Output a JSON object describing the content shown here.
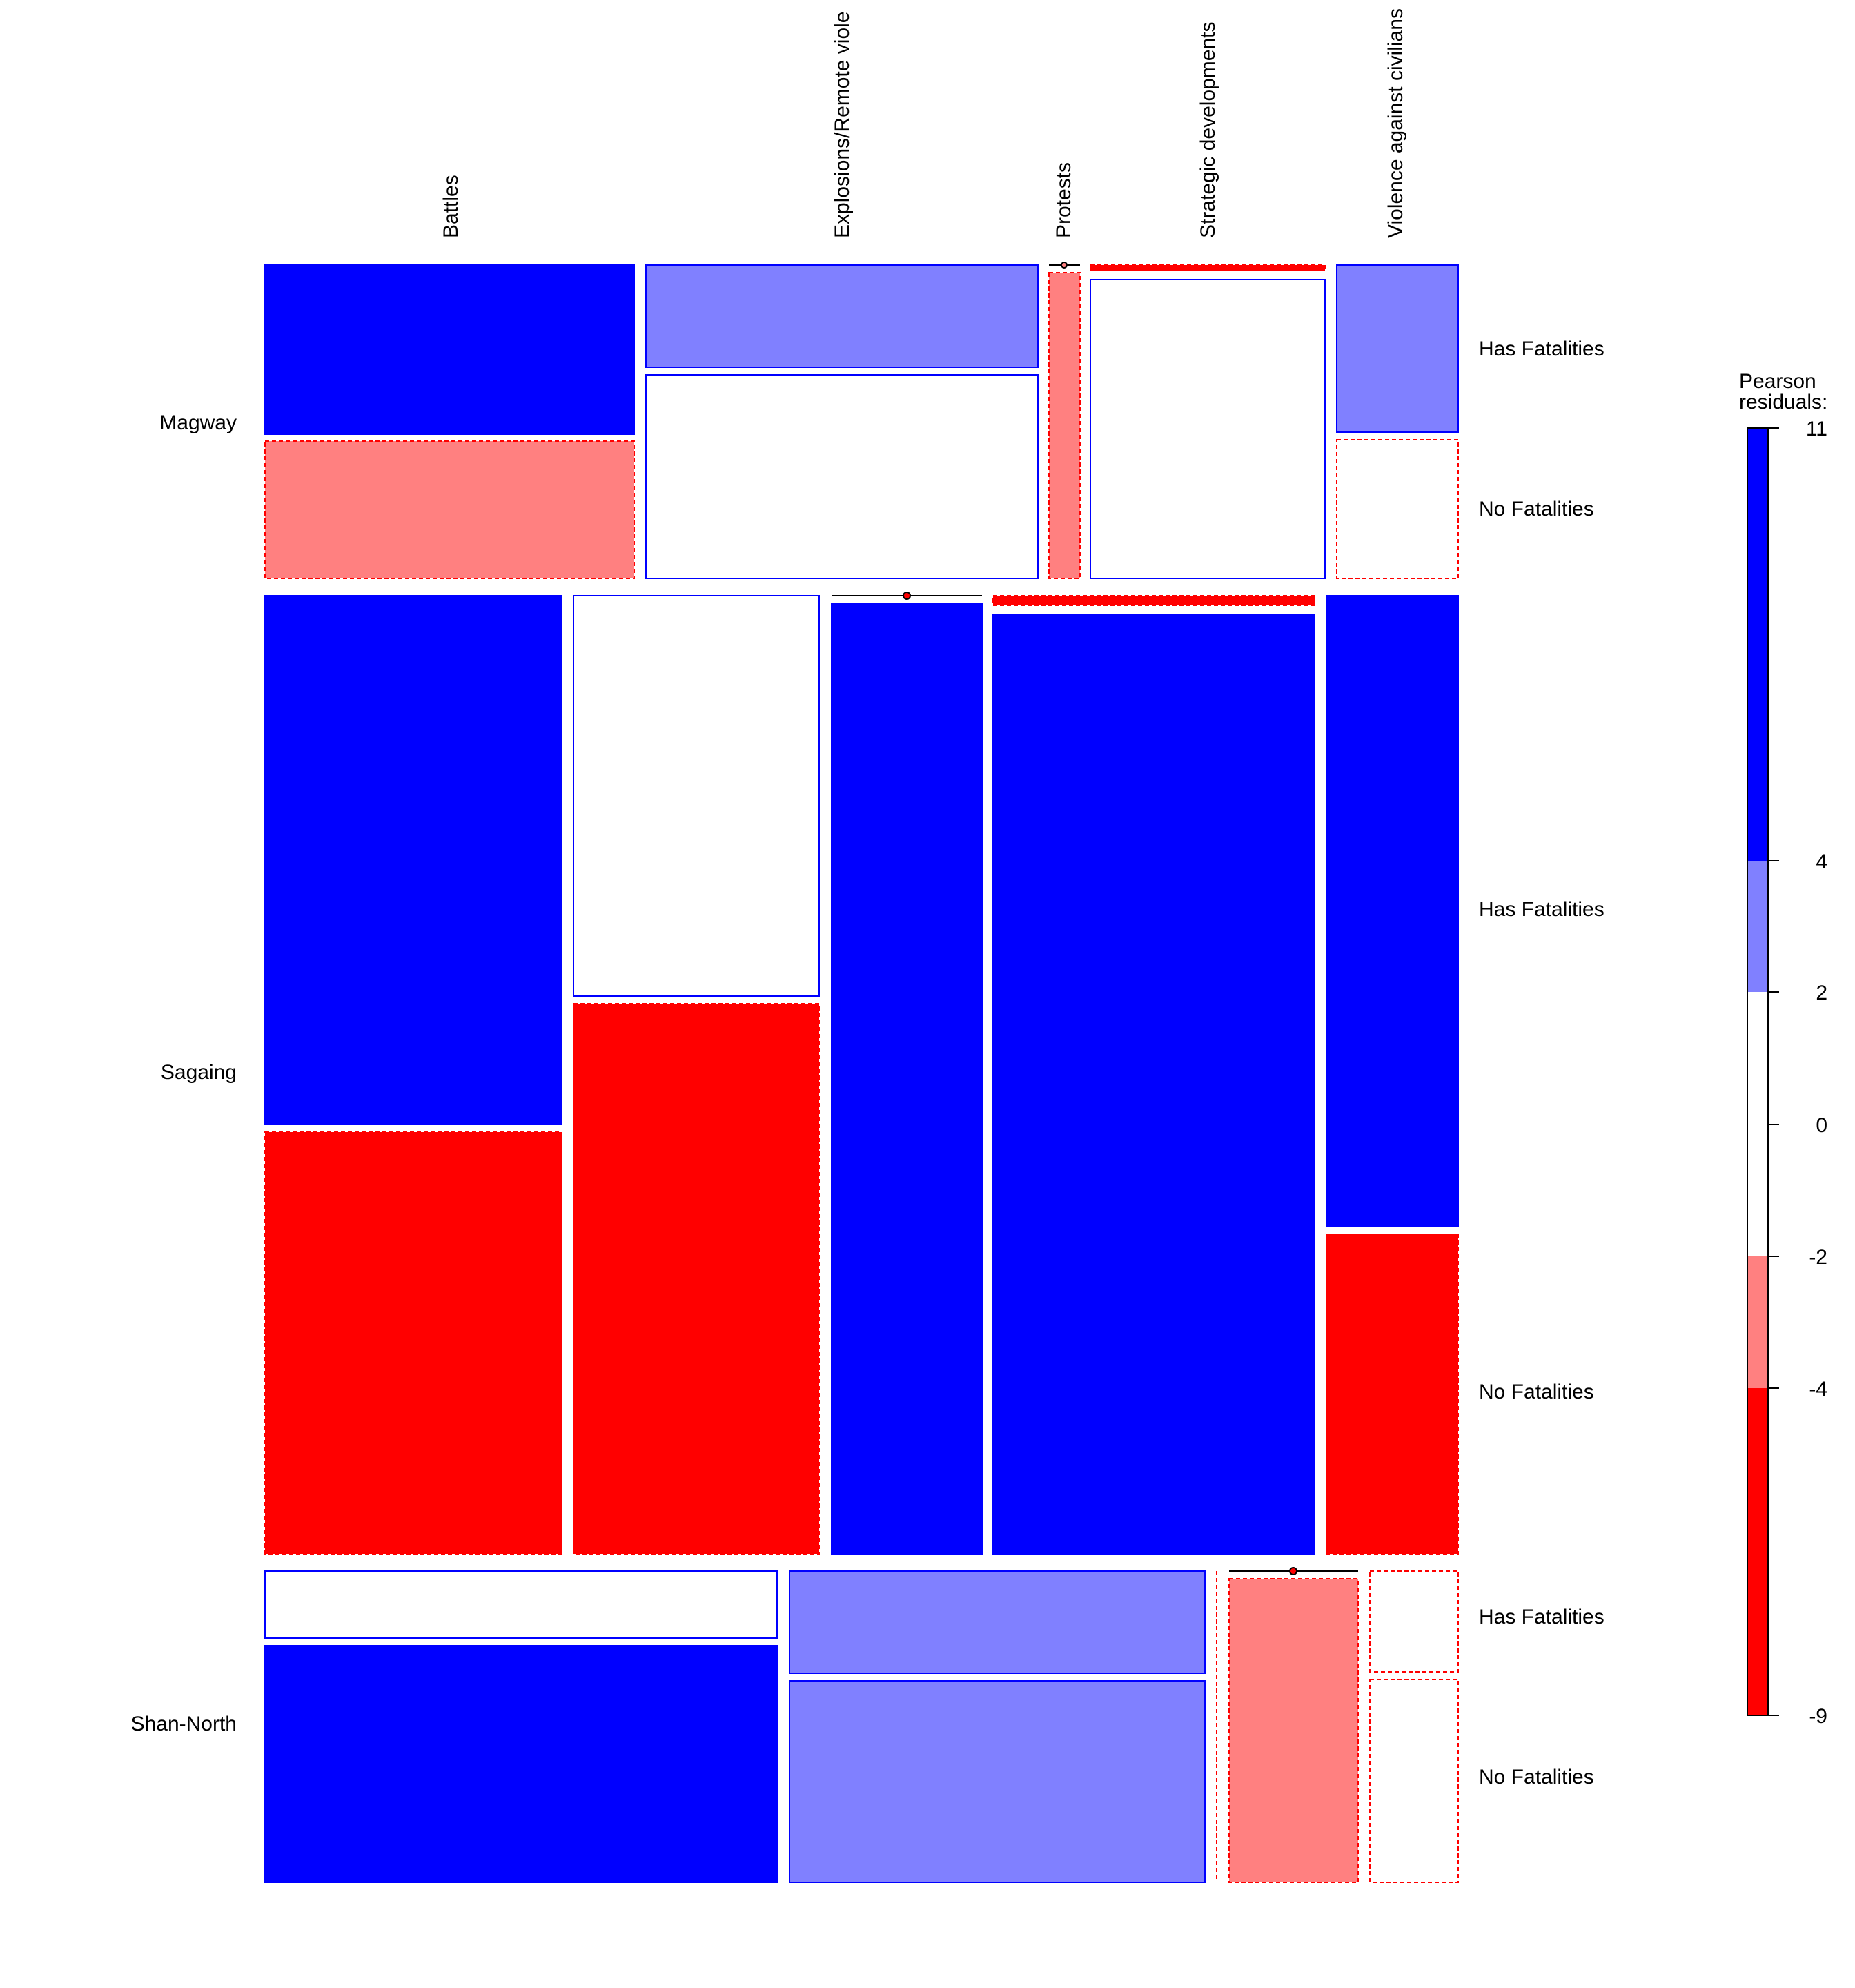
{
  "chart_data": {
    "type": "mosaic",
    "title": "",
    "legend": {
      "title_lines": [
        "Pearson",
        "residuals:"
      ],
      "ticks": [
        "11",
        "4",
        "2",
        "0",
        "-2",
        "-4",
        "-9"
      ],
      "range": [
        -9,
        11
      ],
      "placement": "right"
    },
    "colors": {
      "strong_positive": "#0000FF",
      "positive": "#8080FF",
      "neutral": "#FFFFFF",
      "negative": "#FF8080",
      "strong_negative": "#FF0000",
      "positive_border": "#0000FF",
      "negative_border": "#FF0000"
    },
    "column_labels": [
      "Battles",
      "Explosions/Remote viole",
      "Protests",
      "Strategic developments",
      "Violence against civilians"
    ],
    "row_labels": [
      "Magway",
      "Sagaing",
      "Shan-North"
    ],
    "fatality_labels": [
      "Has Fatalities",
      "No Fatalities"
    ],
    "cells": [
      {
        "region": "Magway",
        "event": "Battles",
        "has_share": 0.55,
        "has_residual": 5,
        "no_residual": -3
      },
      {
        "region": "Magway",
        "event": "Explosions/Remote violence",
        "has_share": 0.34,
        "has_residual": 3,
        "no_residual": 0.5
      },
      {
        "region": "Magway",
        "event": "Protests",
        "has_share": 0.0,
        "has_residual": 0,
        "no_residual": -3,
        "zero_has": true
      },
      {
        "region": "Magway",
        "event": "Strategic developments",
        "has_share": 0.03,
        "has_residual": -5,
        "no_residual": 0.5
      },
      {
        "region": "Magway",
        "event": "Violence against civilians",
        "has_share": 0.56,
        "has_residual": 3,
        "no_residual": -1
      },
      {
        "region": "Sagaing",
        "event": "Battles",
        "has_share": 0.55,
        "has_residual": 6,
        "no_residual": -6
      },
      {
        "region": "Sagaing",
        "event": "Explosions/Remote violence",
        "has_share": 0.42,
        "has_residual": 1,
        "no_residual": -6
      },
      {
        "region": "Sagaing",
        "event": "Protests",
        "has_share": 0.0,
        "has_residual": 0,
        "no_residual": 6,
        "zero_has": true
      },
      {
        "region": "Sagaing",
        "event": "Strategic developments",
        "has_share": 0.015,
        "has_residual": -6,
        "no_residual": 6
      },
      {
        "region": "Sagaing",
        "event": "Violence against civilians",
        "has_share": 0.66,
        "has_residual": 6,
        "no_residual": -6
      },
      {
        "region": "Shan-North",
        "event": "Battles",
        "has_share": 0.22,
        "has_residual": 0.5,
        "no_residual": 6
      },
      {
        "region": "Shan-North",
        "event": "Explosions/Remote violence",
        "has_share": 0.34,
        "has_residual": 3,
        "no_residual": 3
      },
      {
        "region": "Shan-North",
        "event": "Protests",
        "has_share": 0.0,
        "has_residual": 0,
        "no_residual": -1,
        "zero_all": true
      },
      {
        "region": "Shan-North",
        "event": "Strategic developments",
        "has_share": 0.0,
        "has_residual": 0,
        "no_residual": -3,
        "zero_has": true
      },
      {
        "region": "Shan-North",
        "event": "Violence against civilians",
        "has_share": 0.34,
        "has_residual": -1,
        "no_residual": -1
      }
    ],
    "row_shares": [
      0.19,
      0.59,
      0.22
    ],
    "col_shares": {
      "Magway": [
        0.31,
        0.33,
        0.025,
        0.2,
        0.1
      ],
      "Sagaing": [
        0.25,
        0.21,
        0.13,
        0.27,
        0.11
      ],
      "Shan-North": [
        0.43,
        0.35,
        0.0,
        0.11,
        0.074
      ]
    }
  }
}
